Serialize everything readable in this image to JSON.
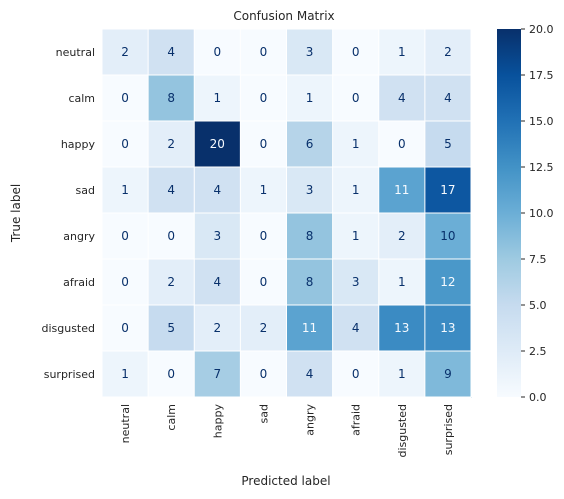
{
  "chart_data": {
    "type": "heatmap",
    "title": "Confusion Matrix",
    "xlabel": "Predicted label",
    "ylabel": "True label",
    "x_categories": [
      "neutral",
      "calm",
      "happy",
      "sad",
      "angry",
      "afraid",
      "disgusted",
      "surprised"
    ],
    "y_categories": [
      "neutral",
      "calm",
      "happy",
      "sad",
      "angry",
      "afraid",
      "disgusted",
      "surprised"
    ],
    "values": [
      [
        2,
        4,
        0,
        0,
        3,
        0,
        1,
        2
      ],
      [
        0,
        8,
        1,
        0,
        1,
        0,
        4,
        4
      ],
      [
        0,
        2,
        20,
        0,
        6,
        1,
        0,
        5
      ],
      [
        1,
        4,
        4,
        1,
        3,
        1,
        11,
        17
      ],
      [
        0,
        0,
        3,
        0,
        8,
        1,
        2,
        10
      ],
      [
        0,
        2,
        4,
        0,
        8,
        3,
        1,
        12
      ],
      [
        0,
        5,
        2,
        2,
        11,
        4,
        13,
        13
      ],
      [
        1,
        0,
        7,
        0,
        4,
        0,
        1,
        9
      ]
    ],
    "colorscale": "Blues",
    "colorbar": {
      "range": [
        0,
        20
      ],
      "ticks": [
        "0.0",
        "2.5",
        "5.0",
        "7.5",
        "10.0",
        "12.5",
        "15.0",
        "17.5",
        "20.0"
      ]
    },
    "grid": true
  }
}
